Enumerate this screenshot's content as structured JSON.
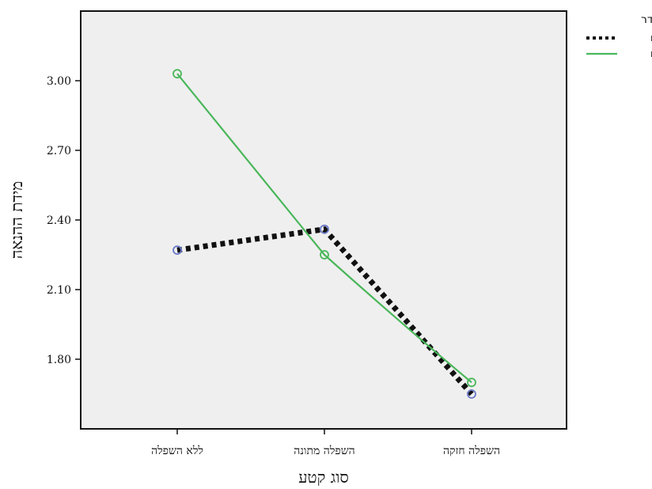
{
  "chart_data": {
    "type": "line",
    "categories": [
      "ללא השפלה",
      "השפלה מתונה",
      "השפלה חזקה"
    ],
    "series": [
      {
        "name": "גברים",
        "values": [
          2.27,
          2.36,
          1.65
        ],
        "color": "#111111",
        "marker_color": "#6b79c8",
        "line_style": "dotted-thick"
      },
      {
        "name": "נשים",
        "values": [
          3.03,
          2.25,
          1.7
        ],
        "color": "#4ab75a",
        "marker_color": "#4ab75a",
        "line_style": "solid"
      }
    ],
    "xlabel": "סוג קטע",
    "ylabel": "מידת ההנאה",
    "ylim": [
      1.5,
      3.3
    ],
    "yticks": [
      1.8,
      2.1,
      2.4,
      2.7,
      3.0
    ],
    "ytick_labels": [
      "1.80",
      "2.10",
      "2.40",
      "2.70",
      "3.00"
    ],
    "grid": false,
    "legend": {
      "title": "מגדר",
      "placement": "top-right-outside"
    },
    "plot_background": "#efefef"
  }
}
